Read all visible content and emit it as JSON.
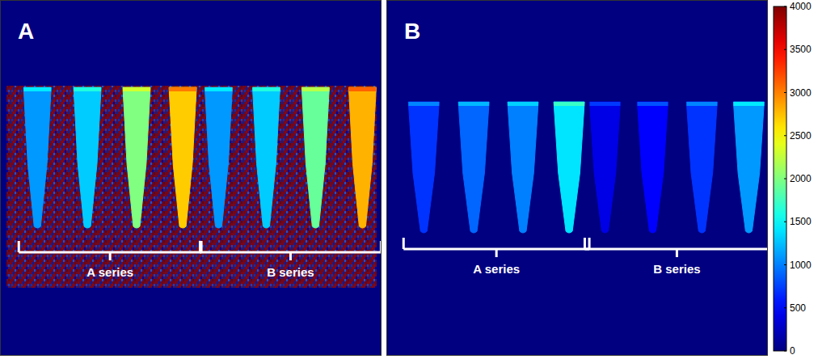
{
  "chart_data": [
    {
      "type": "heatmap",
      "title": "A",
      "series": [
        {
          "name": "A series",
          "values": [
            1100,
            1300,
            2000,
            2700
          ]
        },
        {
          "name": "B series",
          "values": [
            1100,
            1300,
            1900,
            2800
          ]
        }
      ],
      "color_range": [
        0,
        4000
      ]
    },
    {
      "type": "heatmap",
      "title": "B",
      "series": [
        {
          "name": "A series",
          "values": [
            700,
            900,
            1000,
            1400
          ]
        },
        {
          "name": "B series",
          "values": [
            400,
            500,
            700,
            1100
          ]
        }
      ],
      "color_range": [
        0,
        4000
      ],
      "color_ticks": [
        0,
        500,
        1000,
        1500,
        2000,
        2500,
        3000,
        3500,
        4000
      ]
    }
  ]
}
